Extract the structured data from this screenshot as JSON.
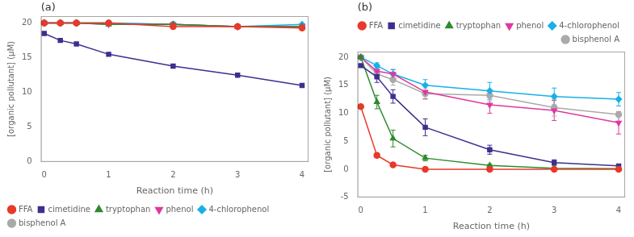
{
  "chart_data": [
    {
      "type": "line",
      "annotation": "(a)",
      "x": [
        0,
        0.25,
        0.5,
        1,
        2,
        3,
        4
      ],
      "series": [
        {
          "name": "FFA",
          "color": "#e8392a",
          "marker": "circle",
          "values": [
            20.0,
            20.0,
            20.0,
            20.0,
            19.5,
            19.5,
            19.3
          ]
        },
        {
          "name": "cimetidine",
          "color": "#3d2f8e",
          "marker": "square",
          "values": [
            18.5,
            17.5,
            17.0,
            15.5,
            13.8,
            12.5,
            11.0
          ]
        },
        {
          "name": "tryptophan",
          "color": "#2d8a2d",
          "marker": "triangle",
          "values": [
            20.0,
            20.0,
            20.0,
            19.8,
            19.8,
            19.5,
            19.5
          ]
        },
        {
          "name": "phenol",
          "color": "#e0389e",
          "marker": "triangle_down",
          "values": [
            20.0,
            20.0,
            20.0,
            19.8,
            19.8,
            19.5,
            19.5
          ]
        },
        {
          "name": "4-chlorophenol",
          "color": "#18b0e8",
          "marker": "diamond",
          "values": [
            20.0,
            20.0,
            20.0,
            20.0,
            19.8,
            19.5,
            19.8
          ]
        },
        {
          "name": "bisphenol A",
          "color": "#aaaaaa",
          "marker": "circle",
          "values": [
            20.0,
            20.0,
            20.0,
            20.0,
            19.8,
            19.5,
            19.5
          ]
        }
      ],
      "xlabel": "Reaction time (h)",
      "ylabel": "[organic pollutant] (μM)",
      "xlim": [
        -0.05,
        4.1
      ],
      "xticks": [
        0,
        1,
        2,
        3,
        4
      ],
      "ylim": [
        0,
        21
      ],
      "yticks": [
        0,
        5,
        10,
        15,
        20
      ],
      "grid": false,
      "legend": "lower left"
    },
    {
      "type": "line",
      "annotation": "(b)",
      "x": [
        0,
        0.25,
        0.5,
        1,
        2,
        3,
        4
      ],
      "series": [
        {
          "name": "FFA",
          "color": "#e8392a",
          "marker": "circle",
          "values": [
            11.2,
            2.5,
            0.8,
            0.0,
            0.0,
            0.0,
            0.0
          ],
          "errors": [
            0.3,
            0.4,
            0.2,
            0.1,
            0.05,
            0.05,
            0.05
          ]
        },
        {
          "name": "cimetidine",
          "color": "#3d2f8e",
          "marker": "square",
          "values": [
            18.5,
            16.5,
            13.0,
            7.5,
            3.5,
            1.2,
            0.6
          ],
          "errors": [
            0.2,
            1.0,
            1.2,
            1.5,
            0.8,
            0.5,
            0.2
          ]
        },
        {
          "name": "tryptophan",
          "color": "#2d8a2d",
          "marker": "triangle",
          "values": [
            20.0,
            12.0,
            5.5,
            2.0,
            0.7,
            0.2,
            0.1
          ],
          "errors": [
            0.2,
            1.2,
            1.5,
            0.5,
            0.2,
            0.1,
            0.05
          ]
        },
        {
          "name": "phenol",
          "color": "#e0389e",
          "marker": "triangle_down",
          "values": [
            20.0,
            17.5,
            17.0,
            13.8,
            11.5,
            10.5,
            8.3
          ],
          "errors": [
            0.2,
            0.5,
            0.8,
            1.2,
            1.5,
            1.8,
            2.0
          ]
        },
        {
          "name": "4-chlorophenol",
          "color": "#18b0e8",
          "marker": "diamond",
          "values": [
            20.0,
            18.5,
            17.0,
            15.0,
            14.0,
            13.0,
            12.5
          ],
          "errors": [
            0.2,
            0.5,
            0.8,
            1.0,
            1.5,
            1.5,
            1.2
          ]
        },
        {
          "name": "bisphenol A",
          "color": "#aaaaaa",
          "marker": "circle",
          "values": [
            20.0,
            17.0,
            16.0,
            13.5,
            13.2,
            11.0,
            9.8
          ],
          "errors": [
            0.2,
            0.5,
            1.0,
            1.0,
            1.0,
            1.5,
            0.4
          ]
        }
      ],
      "xlabel": "Reaction time (h)",
      "ylabel": "[organic pollutant] (μM)",
      "xlim": [
        -0.05,
        4.1
      ],
      "xticks": [
        0,
        1,
        2,
        3,
        4
      ],
      "ylim": [
        -5,
        21
      ],
      "yticks": [
        -5,
        0,
        5,
        10,
        15,
        20
      ],
      "grid": false,
      "legend": "upper right"
    }
  ]
}
